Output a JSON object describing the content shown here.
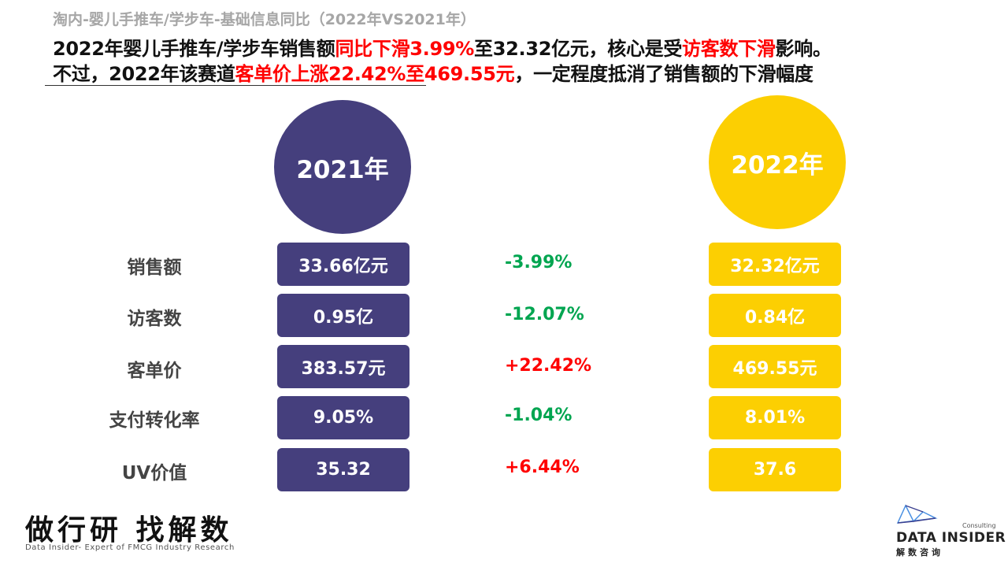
{
  "header": {
    "subtitle": "淘内-婴儿手推车/学步车-基础信息同比（2022年VS2021年）",
    "line1": {
      "part1": "2022年婴儿手推车/学步车销售额",
      "part2_red": "同比下滑3.99%",
      "part3": "至32.32亿元，核心是受",
      "part4_red": "访客数下滑",
      "part5": "影响。"
    },
    "line2": {
      "part1": "不过，2022年该赛道",
      "part2_red": "客单价上涨22.42%至469.55元",
      "part3": "，一定程度抵消了销售额的下滑幅度"
    }
  },
  "years": {
    "left": "2021年",
    "right": "2022年"
  },
  "rows": [
    {
      "label": "销售额",
      "v2021": "33.66亿元",
      "change": "-3.99%",
      "v2022": "32.32亿元"
    },
    {
      "label": "访客数",
      "v2021": "0.95亿",
      "change": "-12.07%",
      "v2022": "0.84亿"
    },
    {
      "label": "客单价",
      "v2021": "383.57元",
      "change": "+22.42%",
      "v2022": "469.55元"
    },
    {
      "label": "支付转化率",
      "v2021": "9.05%",
      "change": "-1.04%",
      "v2022": "8.01%"
    },
    {
      "label": "UV价值",
      "v2021": "35.32",
      "change": "+6.44%",
      "v2022": "37.6"
    }
  ],
  "colors": {
    "purple": "#453f7d",
    "yellow": "#fccf02",
    "negative": "#00a550",
    "positive": "#ff0000"
  },
  "footer": {
    "brand_cn": "做行研 找解数",
    "brand_en": "Data Insider- Expert of FMCG Industry Research",
    "logo_consulting": "Consulting",
    "logo_name": "DATA INSIDER",
    "logo_cn": "解数咨询"
  }
}
